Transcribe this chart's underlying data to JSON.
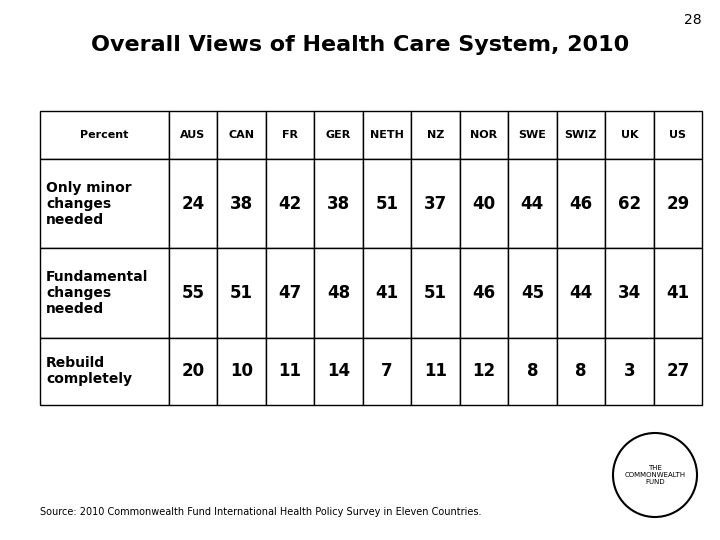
{
  "title": "Overall Views of Health Care System, 2010",
  "slide_number": "28",
  "columns": [
    "Percent",
    "AUS",
    "CAN",
    "FR",
    "GER",
    "NETH",
    "NZ",
    "NOR",
    "SWE",
    "SWIZ",
    "UK",
    "US"
  ],
  "rows": [
    {
      "label": "Only minor\nchanges\nneeded",
      "values": [
        24,
        38,
        42,
        38,
        51,
        37,
        40,
        44,
        46,
        62,
        29
      ]
    },
    {
      "label": "Fundamental\nchanges\nneeded",
      "values": [
        55,
        51,
        47,
        48,
        41,
        51,
        46,
        45,
        44,
        34,
        41
      ]
    },
    {
      "label": "Rebuild\ncompletely",
      "values": [
        20,
        10,
        11,
        14,
        7,
        11,
        12,
        8,
        8,
        3,
        27
      ]
    }
  ],
  "source_text": "Source: 2010 Commonwealth Fund International Health Policy Survey in Eleven Countries.",
  "logo_text": "THE\nCOMMONWEALTH\nFUND",
  "background_color": "#ffffff",
  "table_border_color": "#000000",
  "header_fontsize": 8,
  "data_fontsize": 12,
  "label_fontsize": 10,
  "title_fontsize": 16,
  "slide_num_fontsize": 10,
  "source_fontsize": 7,
  "logo_fontsize": 5
}
